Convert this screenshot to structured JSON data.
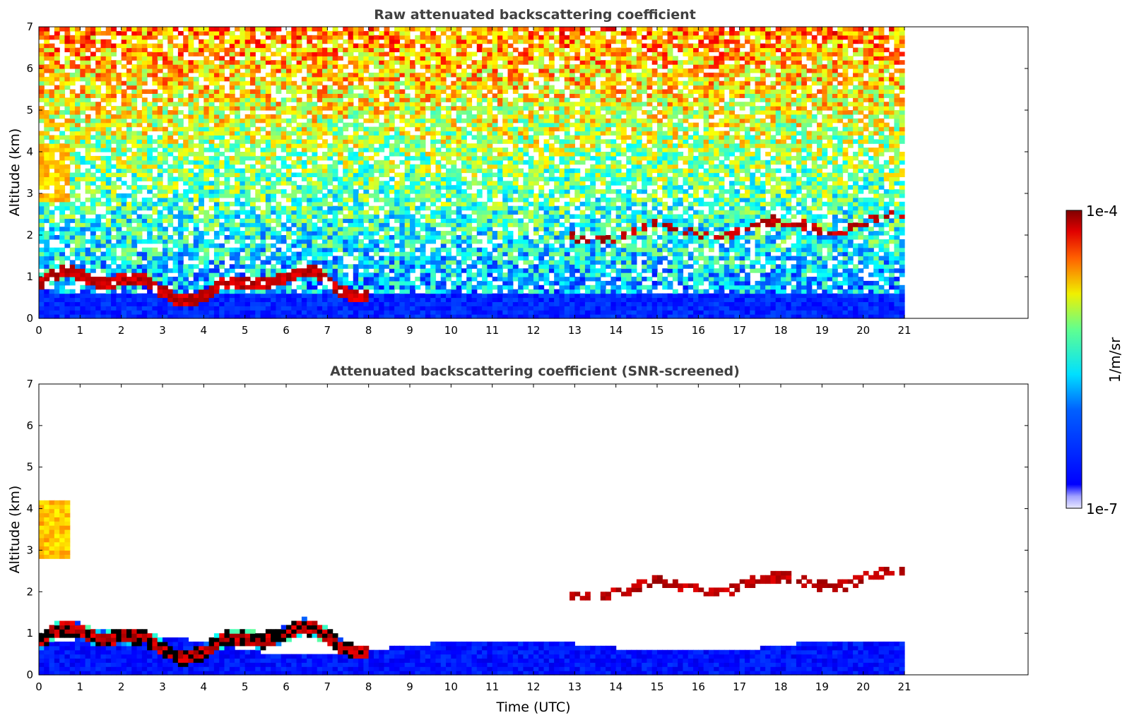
{
  "chart_data": [
    {
      "type": "heatmap",
      "title": "Raw attenuated backscattering coefficient",
      "xlabel": "",
      "ylabel": "Altitude (km)",
      "xlim": [
        0,
        24
      ],
      "ylim": [
        0,
        7
      ],
      "data_extent_x": [
        0,
        21
      ],
      "xticks": [
        0,
        1,
        2,
        3,
        4,
        5,
        6,
        7,
        8,
        9,
        10,
        11,
        12,
        13,
        14,
        15,
        16,
        17,
        18,
        19,
        20,
        21
      ],
      "yticks": [
        0,
        1,
        2,
        3,
        4,
        5,
        6,
        7
      ],
      "colormap": "jet",
      "grid": false,
      "features": {
        "boundary_layer_top_km": 0.6,
        "low_cloud_layer": {
          "x": [
            0,
            8
          ],
          "y_km": [
            0.5,
            1.3
          ]
        },
        "mid_level_aerosol": {
          "x": [
            0,
            0.8
          ],
          "y_km": [
            2.8,
            4.2
          ]
        },
        "high_cloud_layer": {
          "x": [
            12.9,
            21
          ],
          "y_km": [
            1.9,
            2.9
          ]
        }
      }
    },
    {
      "type": "heatmap",
      "title": "Attenuated backscattering coefficient (SNR-screened)",
      "xlabel": "Time (UTC)",
      "ylabel": "Altitude (km)",
      "xlim": [
        0,
        24
      ],
      "ylim": [
        0,
        7
      ],
      "data_extent_x": [
        0,
        21
      ],
      "xticks": [
        0,
        1,
        2,
        3,
        4,
        5,
        6,
        7,
        8,
        9,
        10,
        11,
        12,
        13,
        14,
        15,
        16,
        17,
        18,
        19,
        20,
        21
      ],
      "yticks": [
        0,
        1,
        2,
        3,
        4,
        5,
        6,
        7
      ],
      "colormap": "jet",
      "grid": false
    }
  ],
  "colorbar": {
    "label": "1/m/sr",
    "max_label": "1e-4",
    "min_label": "1e-7",
    "scale": "log",
    "range": [
      1e-07,
      0.0001
    ]
  }
}
